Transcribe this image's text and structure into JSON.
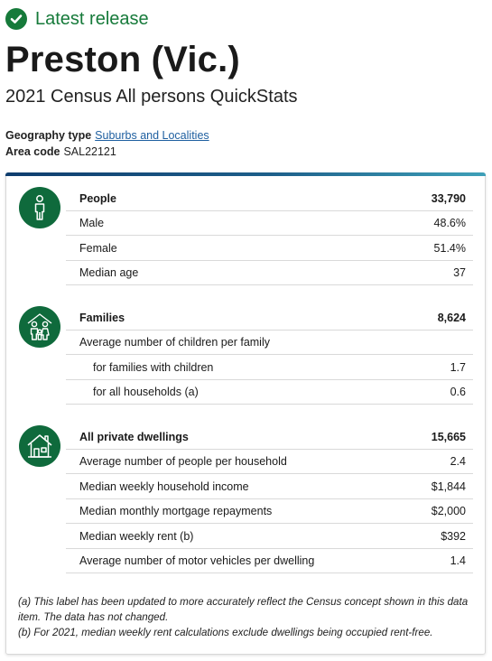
{
  "release": {
    "label": "Latest release",
    "icon": "check-circle-icon",
    "color": "#167a3a"
  },
  "title": "Preston (Vic.)",
  "subtitle": "2021 Census All persons QuickStats",
  "geography": {
    "label": "Geography type",
    "value": "Suburbs and Localities"
  },
  "area_code": {
    "label": "Area code",
    "value": "SAL22121"
  },
  "sections": {
    "people": {
      "icon": "person-icon",
      "rows": [
        {
          "label": "People",
          "value": "33,790"
        },
        {
          "label": "Male",
          "value": "48.6%"
        },
        {
          "label": "Female",
          "value": "51.4%"
        },
        {
          "label": "Median age",
          "value": "37"
        }
      ]
    },
    "families": {
      "icon": "family-icon",
      "rows": [
        {
          "label": "Families",
          "value": "8,624"
        },
        {
          "label": "Average number of children per family",
          "value": ""
        },
        {
          "label": "for families with children",
          "value": "1.7"
        },
        {
          "label": "for all households (a)",
          "value": "0.6"
        }
      ]
    },
    "dwellings": {
      "icon": "house-icon",
      "rows": [
        {
          "label": "All private dwellings",
          "value": "15,665"
        },
        {
          "label": "Average number of people per household",
          "value": "2.4"
        },
        {
          "label": "Median weekly household income",
          "value": "$1,844"
        },
        {
          "label": "Median monthly mortgage repayments",
          "value": "$2,000"
        },
        {
          "label": "Median weekly rent (b)",
          "value": "$392"
        },
        {
          "label": "Average number of motor vehicles per dwelling",
          "value": "1.4"
        }
      ]
    }
  },
  "footnotes": {
    "a": "(a) This label has been updated to more accurately reflect the Census concept shown in this data item. The data has not changed.",
    "b": "(b) For 2021, median weekly rent calculations exclude dwellings being occupied rent-free."
  }
}
